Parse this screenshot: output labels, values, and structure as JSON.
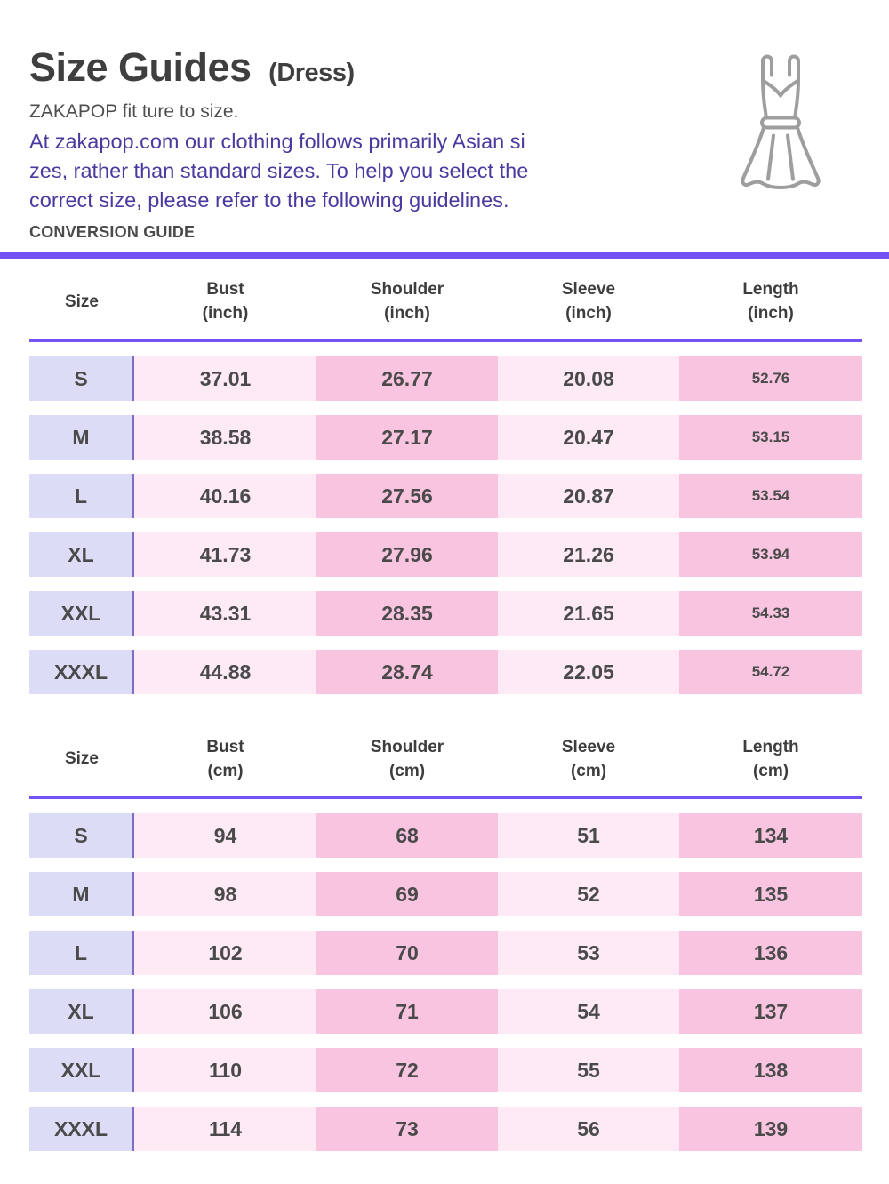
{
  "header": {
    "title": "Size Guides",
    "title_suffix": "(Dress)",
    "fit_note": "ZAKAPOP fit ture to size.",
    "description_lines": [
      "At zakapop.com our clothing follows primarily Asian si",
      "zes, rather than standard sizes. To help you select the",
      "correct size, please refer to the following guidelines."
    ],
    "conversion_label": "CONVERSION GUIDE",
    "icon": "dress-outline-icon"
  },
  "colors": {
    "accent_purple": "#7252f2",
    "separator_purple": "#7b6fc4",
    "lavender": "#dcdcf6",
    "light_pink": "#fdeaf4",
    "medium_pink": "#f9c4e0",
    "indigo_text": "#4a3aa0",
    "icon_gray": "#9e9e9e"
  },
  "tables": [
    {
      "id": "inch",
      "headers": [
        {
          "label": "Size",
          "sub": ""
        },
        {
          "label": "Bust",
          "sub": "(inch)"
        },
        {
          "label": "Shoulder",
          "sub": "(inch)"
        },
        {
          "label": "Sleeve",
          "sub": "(inch)"
        },
        {
          "label": "Length",
          "sub": "(inch)"
        }
      ],
      "rows": [
        [
          "S",
          "37.01",
          "26.77",
          "20.08",
          "52.76"
        ],
        [
          "M",
          "38.58",
          "27.17",
          "20.47",
          "53.15"
        ],
        [
          "L",
          "40.16",
          "27.56",
          "20.87",
          "53.54"
        ],
        [
          "XL",
          "41.73",
          "27.96",
          "21.26",
          "53.94"
        ],
        [
          "XXL",
          "43.31",
          "28.35",
          "21.65",
          "54.33"
        ],
        [
          "XXXL",
          "44.88",
          "28.74",
          "22.05",
          "54.72"
        ]
      ],
      "length_column_small_font": true
    },
    {
      "id": "cm",
      "headers": [
        {
          "label": "Size",
          "sub": ""
        },
        {
          "label": "Bust",
          "sub": "(cm)"
        },
        {
          "label": "Shoulder",
          "sub": "(cm)"
        },
        {
          "label": "Sleeve",
          "sub": "(cm)"
        },
        {
          "label": "Length",
          "sub": "(cm)"
        }
      ],
      "rows": [
        [
          "S",
          "94",
          "68",
          "51",
          "134"
        ],
        [
          "M",
          "98",
          "69",
          "52",
          "135"
        ],
        [
          "L",
          "102",
          "70",
          "53",
          "136"
        ],
        [
          "XL",
          "106",
          "71",
          "54",
          "137"
        ],
        [
          "XXL",
          "110",
          "72",
          "55",
          "138"
        ],
        [
          "XXXL",
          "114",
          "73",
          "56",
          "139"
        ]
      ],
      "length_column_small_font": false
    }
  ]
}
